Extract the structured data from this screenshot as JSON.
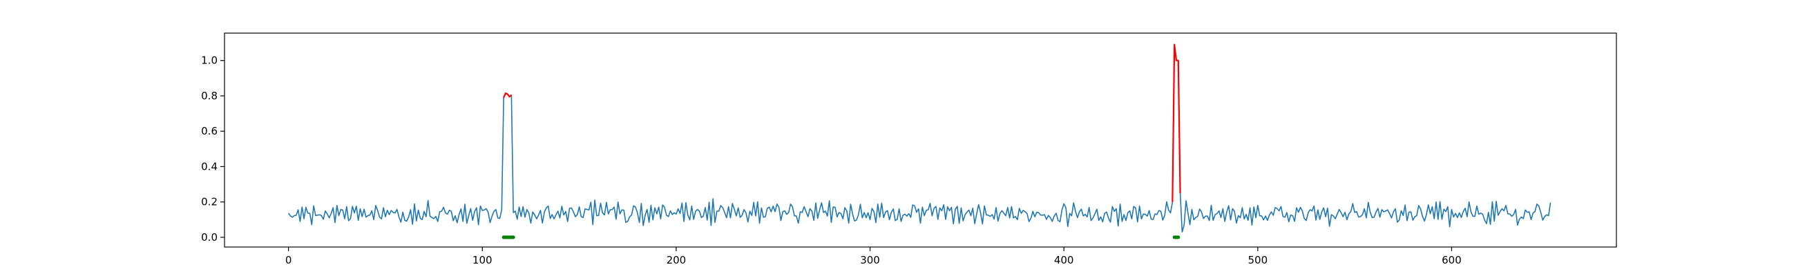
{
  "chart_data": {
    "type": "line",
    "title": "",
    "xlabel": "",
    "ylabel": "",
    "xlim": [
      -33,
      685
    ],
    "ylim": [
      -0.055,
      1.155
    ],
    "x_ticks": [
      0,
      100,
      200,
      300,
      400,
      500,
      600
    ],
    "y_ticks": [
      0.0,
      0.2,
      0.4,
      0.6,
      0.8,
      1.0
    ],
    "x_tick_labels": [
      "0",
      "100",
      "200",
      "300",
      "400",
      "500",
      "600"
    ],
    "y_tick_labels": [
      "0.0",
      "0.2",
      "0.4",
      "0.6",
      "0.8",
      "1.0"
    ],
    "grid": false,
    "legend": "none",
    "series_color": "#1f77b4",
    "anomaly_color": "#ff0000",
    "marker_color": "#008000",
    "n_points": 652,
    "noise_seed": 17,
    "baseline_mean": 0.135,
    "baseline_amplitude": 0.085,
    "spikes": [
      {
        "x": [
          111,
          112,
          113,
          114,
          115,
          116
        ],
        "y": [
          0.79,
          0.815,
          0.81,
          0.795,
          0.805,
          0.14
        ]
      },
      {
        "x": [
          456,
          457,
          458,
          459,
          460,
          461
        ],
        "y": [
          0.2,
          1.09,
          1.0,
          1.0,
          0.25,
          0.03
        ]
      }
    ],
    "anomaly_segments": [
      [
        111,
        115
      ],
      [
        456,
        460
      ]
    ],
    "detection_markers": [
      {
        "x_start": 111,
        "x_end": 116,
        "y": 0.0
      },
      {
        "x_start": 457,
        "x_end": 459,
        "y": 0.0
      }
    ]
  }
}
